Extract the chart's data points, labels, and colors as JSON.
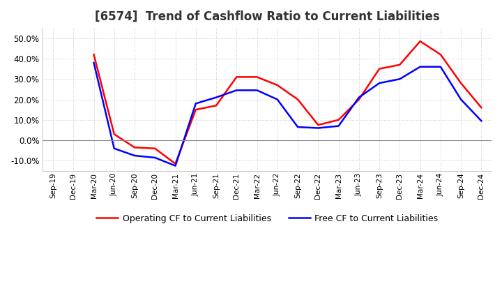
{
  "title": "[6574]  Trend of Cashflow Ratio to Current Liabilities",
  "x_labels": [
    "Sep-19",
    "Dec-19",
    "Mar-20",
    "Jun-20",
    "Sep-20",
    "Dec-20",
    "Mar-21",
    "Jun-21",
    "Sep-21",
    "Dec-21",
    "Mar-22",
    "Jun-22",
    "Sep-22",
    "Dec-22",
    "Mar-23",
    "Jun-23",
    "Sep-23",
    "Dec-23",
    "Mar-24",
    "Jun-24",
    "Sep-24",
    "Dec-24"
  ],
  "operating_cf": [
    null,
    null,
    42.0,
    3.0,
    -3.5,
    -4.0,
    -11.5,
    15.0,
    17.0,
    31.0,
    31.0,
    27.0,
    20.0,
    7.5,
    10.0,
    20.0,
    35.0,
    37.0,
    48.5,
    42.0,
    28.0,
    16.0
  ],
  "free_cf": [
    null,
    null,
    38.0,
    -4.0,
    -7.5,
    -8.5,
    -12.5,
    18.0,
    21.0,
    24.5,
    24.5,
    20.0,
    6.5,
    6.0,
    7.0,
    21.0,
    28.0,
    30.0,
    36.0,
    36.0,
    20.0,
    9.5
  ],
  "ylim": [
    -15,
    55
  ],
  "yticks": [
    -10,
    0,
    10,
    20,
    30,
    40,
    50
  ],
  "operating_color": "#ff0000",
  "free_color": "#0000ff",
  "background_color": "#ffffff",
  "grid_color": "#aaaaaa",
  "zero_line_color": "#888888",
  "title_fontsize": 12,
  "legend_labels": [
    "Operating CF to Current Liabilities",
    "Free CF to Current Liabilities"
  ]
}
